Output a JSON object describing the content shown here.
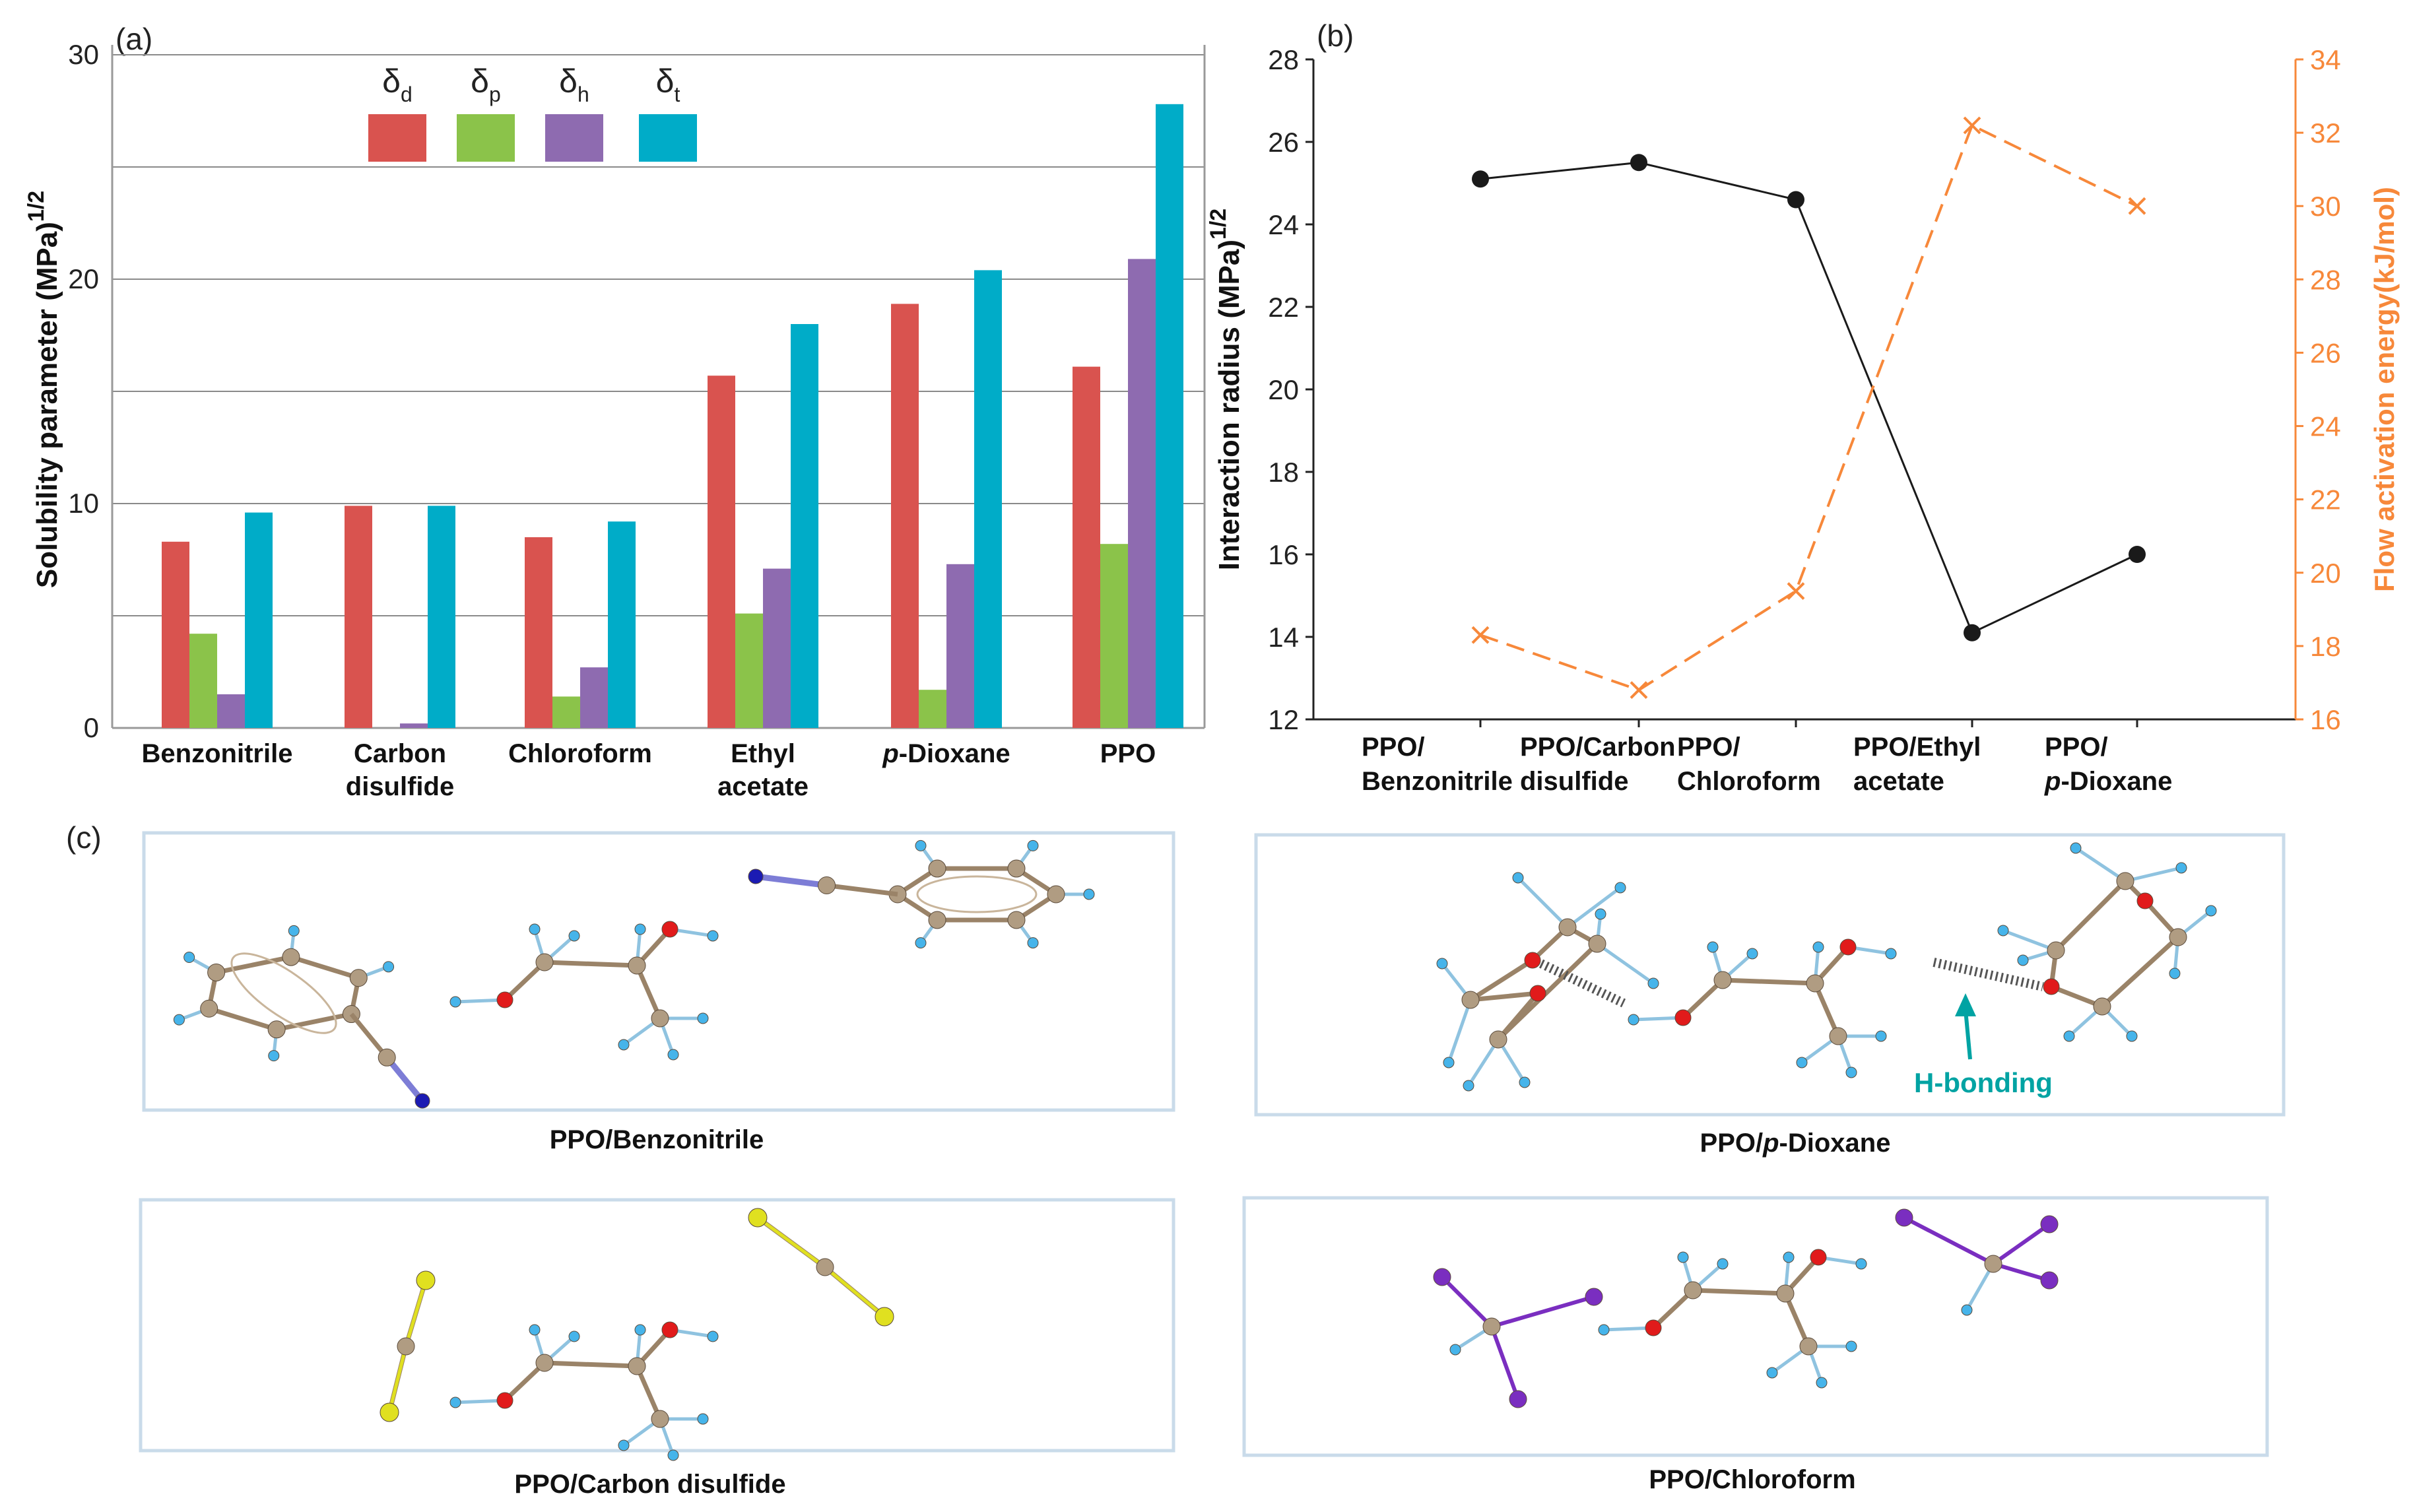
{
  "panels": {
    "a": "(a)",
    "b": "(b)",
    "c": "(c)"
  },
  "colors": {
    "d": "#d9534f",
    "p": "#8bc34a",
    "h": "#8e6bb0",
    "t": "#00acc8",
    "radius": "#1a1a1a",
    "energy": "#f7883a",
    "hbond": "#00a3a3",
    "carbon": "#b09c82",
    "hydrogen": "#46b4ea",
    "oxygen": "#e11b1b",
    "nitrogen": "#1b1bb3",
    "sulfur": "#e0e020",
    "iodine": "#7a2ec0",
    "frame": "#c9dbea"
  },
  "chart_data": [
    {
      "type": "bar",
      "title": "(a)",
      "ylabel_main": "Solubility parameter (MPa)",
      "ylabel_sup": "1/2",
      "ylim": [
        0,
        30
      ],
      "yticks": [
        "0",
        "10",
        "20",
        "30"
      ],
      "grid": true,
      "categories": [
        [
          "Benzonitrile"
        ],
        [
          "Carbon",
          "disulfide"
        ],
        [
          "Chloroform"
        ],
        [
          "Ethyl",
          "acetate"
        ],
        [
          "p-Dioxane"
        ],
        [
          "PPO"
        ]
      ],
      "legend": [
        {
          "key": "d",
          "sym": "δ",
          "sub": "d"
        },
        {
          "key": "p",
          "sym": "δ",
          "sub": "p"
        },
        {
          "key": "h",
          "sym": "δ",
          "sub": "h"
        },
        {
          "key": "t",
          "sym": "δ",
          "sub": "t"
        }
      ],
      "series": [
        {
          "name": "δd",
          "key": "d",
          "values": [
            8.3,
            9.9,
            8.5,
            15.7,
            18.9,
            16.1
          ]
        },
        {
          "name": "δp",
          "key": "p",
          "values": [
            4.2,
            0.0,
            1.4,
            5.1,
            1.7,
            8.2
          ]
        },
        {
          "name": "δh",
          "key": "h",
          "values": [
            1.5,
            0.2,
            2.7,
            7.1,
            7.3,
            20.9
          ]
        },
        {
          "name": "δt",
          "key": "t",
          "values": [
            9.6,
            9.9,
            9.2,
            18.0,
            20.4,
            27.8
          ]
        }
      ]
    },
    {
      "type": "line",
      "title": "(b)",
      "categories": [
        [
          "PPO/",
          "Benzonitrile"
        ],
        [
          "PPO/Carbon",
          "disulfide"
        ],
        [
          "PPO/",
          "Chloroform"
        ],
        [
          "PPO/Ethyl",
          "acetate"
        ],
        [
          "PPO/",
          "p-Dioxane"
        ]
      ],
      "y_left": {
        "label": "Interaction radius (MPa)",
        "sup": "1/2",
        "lim": [
          12,
          28
        ],
        "ticks": [
          "12",
          "14",
          "16",
          "18",
          "20",
          "22",
          "24",
          "26",
          "28"
        ]
      },
      "y_right": {
        "label": "Flow activation energy(kJ/mol)",
        "lim": [
          16,
          34
        ],
        "ticks": [
          "16",
          "18",
          "20",
          "22",
          "24",
          "26",
          "28",
          "30",
          "32",
          "34"
        ]
      },
      "series": [
        {
          "name": "Interaction radius",
          "axis": "left",
          "marker": "circle",
          "values": [
            25.1,
            25.5,
            24.6,
            14.1,
            16.0
          ]
        },
        {
          "name": "Flow activation energy",
          "axis": "right",
          "marker": "x",
          "dash": true,
          "values": [
            18.3,
            16.8,
            19.5,
            32.2,
            30.0
          ]
        }
      ]
    }
  ],
  "molecules": {
    "captions": [
      {
        "segments": [
          "PPO/Benzonitrile"
        ]
      },
      {
        "segments": [
          "PPO/",
          "p",
          "-Dioxane"
        ]
      },
      {
        "segments": [
          "PPO/Carbon disulfide"
        ]
      },
      {
        "segments": [
          "PPO/Chloroform"
        ]
      }
    ],
    "hbond_label": "H-bonding"
  }
}
